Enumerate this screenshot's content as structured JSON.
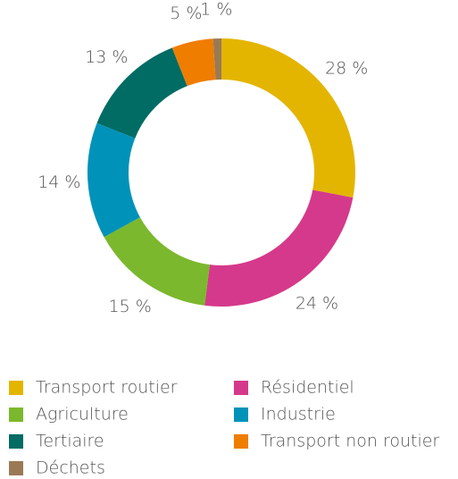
{
  "chart_data": {
    "type": "donut",
    "categories": [
      "Transport routier",
      "Résidentiel",
      "Agriculture",
      "Industrie",
      "Tertiaire",
      "Transport non routier",
      "Déchets"
    ],
    "values": [
      28,
      24,
      15,
      14,
      13,
      5,
      1
    ],
    "value_labels": [
      "28 %",
      "24 %",
      "15 %",
      "14 %",
      "13 %",
      "5 %",
      "1 %"
    ],
    "colors": [
      "#e3b500",
      "#d5398b",
      "#7bb82d",
      "#0092b9",
      "#006c64",
      "#ef7d00",
      "#9a7a55"
    ],
    "legend": "bottom"
  }
}
